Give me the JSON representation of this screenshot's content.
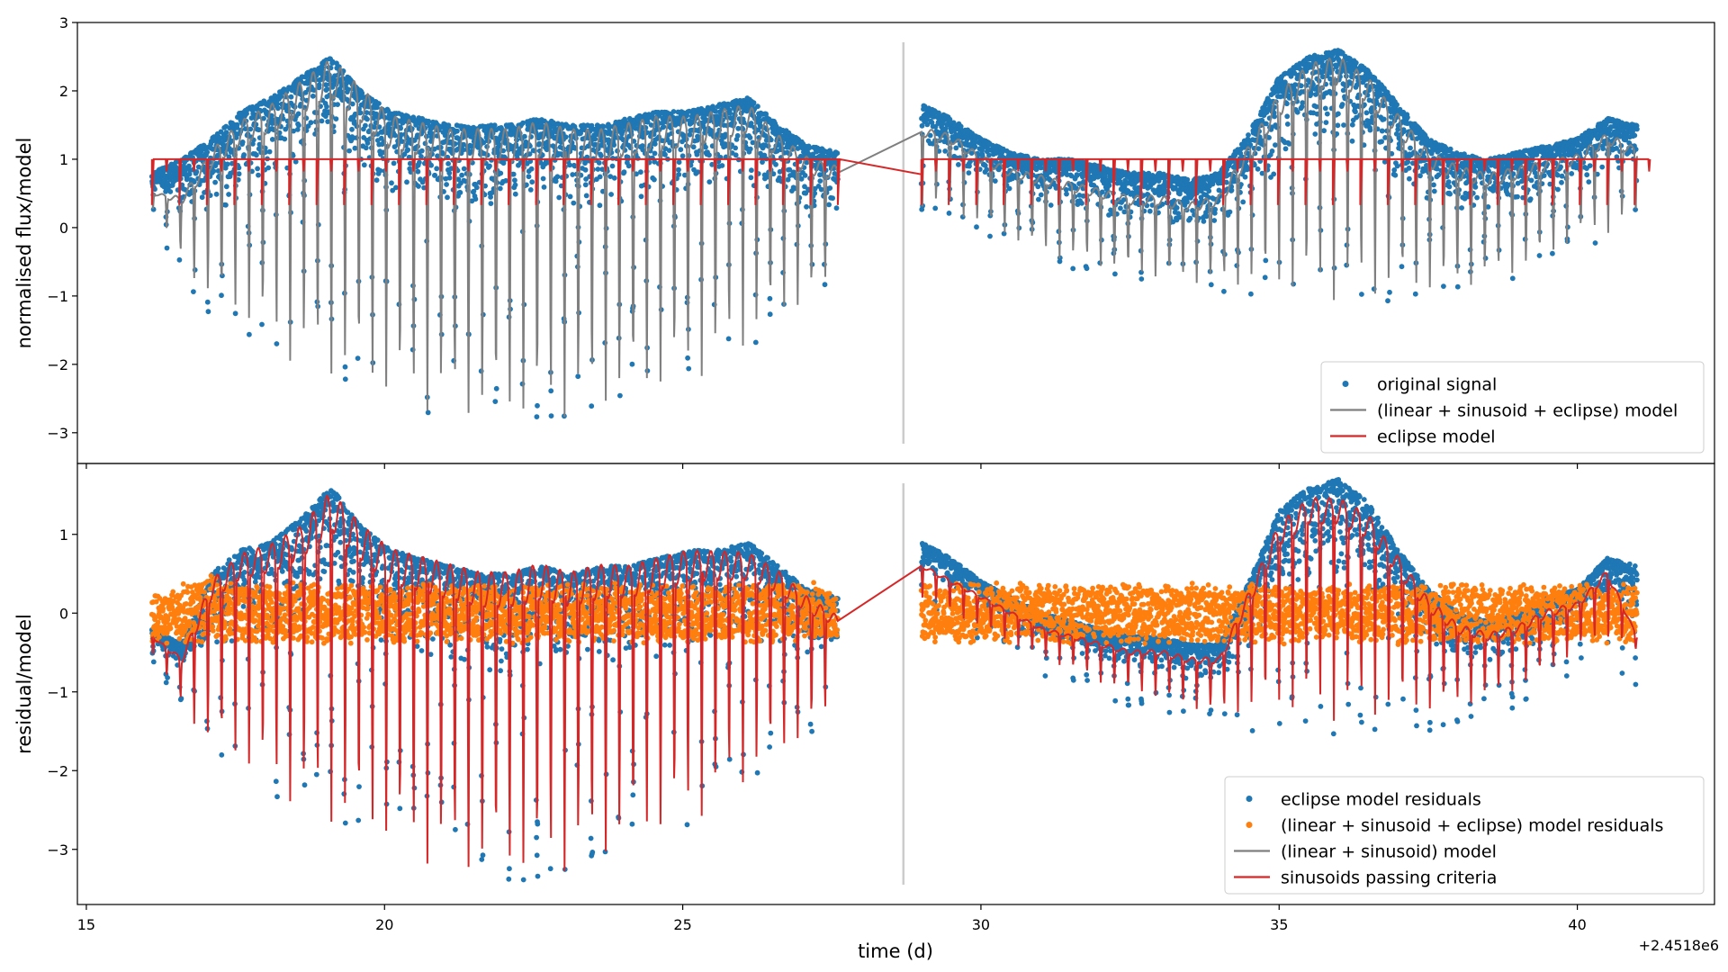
{
  "figure": {
    "xlabel": "time (d)",
    "x_offset_label": "+2.4518e6"
  },
  "chart_data": [
    {
      "type": "scatter",
      "ylabel": "normalised flux/model",
      "xlim": [
        14.85,
        42.3
      ],
      "ylim": [
        -3.45,
        3.0
      ],
      "x_ticks": [
        15,
        20,
        25,
        30,
        35,
        40
      ],
      "y_ticks": [
        -3,
        -2,
        -1,
        0,
        1,
        2,
        3
      ],
      "gap_marker_x": 28.7,
      "legend_position": "lower-right",
      "series": [
        {
          "name": "original signal",
          "kind": "points",
          "color": "#1f77b4",
          "x": [
            16.1,
            16.6,
            17.1,
            17.6,
            18.1,
            18.6,
            19.1,
            19.6,
            20.1,
            20.6,
            21.1,
            21.6,
            22.1,
            22.6,
            23.1,
            23.6,
            24.1,
            24.6,
            25.1,
            25.6,
            26.1,
            26.6,
            27.1,
            27.6,
            29.0,
            29.5,
            30.0,
            30.5,
            31.0,
            31.5,
            32.0,
            32.5,
            33.0,
            33.5,
            34.0,
            34.5,
            35.0,
            35.5,
            36.0,
            36.5,
            37.0,
            37.5,
            38.0,
            38.5,
            39.0,
            39.5,
            40.0,
            40.5,
            41.0
          ],
          "upper": [
            0.8,
            1.0,
            1.3,
            1.7,
            1.9,
            2.2,
            2.5,
            2.0,
            1.7,
            1.6,
            1.5,
            1.5,
            1.5,
            1.6,
            1.5,
            1.5,
            1.6,
            1.7,
            1.7,
            1.8,
            1.9,
            1.5,
            1.2,
            1.1,
            1.8,
            1.6,
            1.3,
            1.1,
            1.0,
            1.0,
            0.9,
            0.8,
            0.8,
            0.7,
            0.8,
            1.4,
            2.2,
            2.5,
            2.6,
            2.3,
            1.8,
            1.3,
            1.1,
            1.0,
            1.1,
            1.2,
            1.3,
            1.6,
            1.5
          ],
          "lower": [
            0.2,
            -0.8,
            -1.3,
            -1.5,
            -1.9,
            -2.2,
            -2.4,
            -2.5,
            -2.7,
            -2.8,
            -2.9,
            -3.0,
            -3.0,
            -3.0,
            -2.9,
            -2.8,
            -2.7,
            -2.6,
            -2.4,
            -2.2,
            -1.9,
            -1.5,
            -1.3,
            -0.9,
            0.2,
            0.1,
            -0.1,
            -0.3,
            -0.5,
            -0.6,
            -0.7,
            -0.8,
            -0.9,
            -0.9,
            -1.0,
            -1.0,
            -1.1,
            -1.2,
            -1.2,
            -1.2,
            -1.1,
            -1.1,
            -1.0,
            -0.9,
            -0.8,
            -0.6,
            -0.3,
            -0.2,
            0.0
          ]
        },
        {
          "name": "(linear + sinusoid + eclipse) model",
          "kind": "line",
          "color": "#7f7f7f",
          "x": [
            16.1,
            16.6,
            17.1,
            17.6,
            18.1,
            18.6,
            19.1,
            19.6,
            20.1,
            20.6,
            21.1,
            21.6,
            22.1,
            22.6,
            23.1,
            23.6,
            24.1,
            24.6,
            25.1,
            25.6,
            26.1,
            26.6,
            27.1,
            27.6,
            29.0,
            29.5,
            30.0,
            30.5,
            31.0,
            31.5,
            32.0,
            32.5,
            33.0,
            33.5,
            34.0,
            34.5,
            35.0,
            35.5,
            36.0,
            36.5,
            37.0,
            37.5,
            38.0,
            38.5,
            39.0,
            39.5,
            40.0,
            40.5,
            41.0
          ],
          "upper": [
            0.5,
            0.4,
            1.0,
            1.4,
            1.6,
            1.9,
            2.2,
            1.8,
            1.4,
            1.3,
            1.2,
            1.2,
            1.2,
            1.3,
            1.2,
            1.2,
            1.3,
            1.4,
            1.4,
            1.5,
            1.6,
            1.2,
            0.9,
            0.8,
            1.4,
            1.3,
            1.0,
            0.8,
            0.7,
            0.6,
            0.5,
            0.4,
            0.4,
            0.3,
            0.4,
            1.1,
            1.8,
            2.2,
            2.3,
            2.0,
            1.5,
            1.0,
            0.8,
            0.7,
            0.8,
            0.9,
            1.0,
            1.3,
            1.1
          ],
          "lower": [
            0.3,
            -0.5,
            -1.2,
            -1.4,
            -1.8,
            -2.1,
            -2.3,
            -2.4,
            -2.6,
            -2.7,
            -2.8,
            -2.9,
            -2.9,
            -2.9,
            -2.8,
            -2.7,
            -2.6,
            -2.5,
            -2.3,
            -2.1,
            -1.8,
            -1.4,
            -1.2,
            -0.8,
            0.3,
            0.2,
            0.0,
            -0.2,
            -0.4,
            -0.5,
            -0.6,
            -0.7,
            -0.8,
            -0.8,
            -0.9,
            -0.9,
            -1.0,
            -1.1,
            -1.1,
            -1.1,
            -1.0,
            -1.0,
            -0.9,
            -0.8,
            -0.7,
            -0.5,
            -0.2,
            -0.1,
            0.1
          ]
        },
        {
          "name": "eclipse model",
          "kind": "eclipse",
          "color": "#d62728",
          "baseline": 1.0,
          "dip_depth": 0.33,
          "period": 0.23,
          "x_start": [
            16.1,
            29.0
          ],
          "x_end": [
            27.7,
            41.1
          ]
        }
      ]
    },
    {
      "type": "scatter",
      "ylabel": "residual/model",
      "xlim": [
        14.85,
        42.3
      ],
      "ylim": [
        -3.7,
        1.9
      ],
      "x_ticks": [
        15,
        20,
        25,
        30,
        35,
        40
      ],
      "y_ticks": [
        -3,
        -2,
        -1,
        0,
        1
      ],
      "gap_marker_x": 28.7,
      "legend_position": "lower-right",
      "series": [
        {
          "name": "eclipse model residuals",
          "kind": "points",
          "color": "#1f77b4",
          "x": [
            16.1,
            16.6,
            17.1,
            17.6,
            18.1,
            18.6,
            19.1,
            19.6,
            20.1,
            20.6,
            21.1,
            21.6,
            22.1,
            22.6,
            23.1,
            23.6,
            24.1,
            24.6,
            25.1,
            25.6,
            26.1,
            26.6,
            27.1,
            27.6,
            29.0,
            29.5,
            30.0,
            30.5,
            31.0,
            31.5,
            32.0,
            32.5,
            33.0,
            33.5,
            34.0,
            34.5,
            35.0,
            35.5,
            36.0,
            36.5,
            37.0,
            37.5,
            38.0,
            38.5,
            39.0,
            39.5,
            40.0,
            40.5,
            41.0
          ],
          "upper": [
            -0.2,
            -0.4,
            0.5,
            0.8,
            0.9,
            1.2,
            1.6,
            1.1,
            0.8,
            0.7,
            0.6,
            0.5,
            0.5,
            0.6,
            0.5,
            0.6,
            0.6,
            0.7,
            0.8,
            0.8,
            0.9,
            0.6,
            0.3,
            0.2,
            0.9,
            0.7,
            0.4,
            0.2,
            0.0,
            -0.1,
            -0.2,
            -0.3,
            -0.3,
            -0.4,
            -0.4,
            0.4,
            1.3,
            1.6,
            1.7,
            1.4,
            0.8,
            0.3,
            0.0,
            -0.1,
            0.0,
            0.2,
            0.3,
            0.7,
            0.6
          ],
          "lower": [
            -0.6,
            -1.2,
            -1.8,
            -2.0,
            -2.3,
            -2.5,
            -2.8,
            -2.9,
            -3.0,
            -3.2,
            -3.3,
            -3.4,
            -3.4,
            -3.4,
            -3.3,
            -3.2,
            -3.0,
            -2.9,
            -2.7,
            -2.5,
            -2.2,
            -1.9,
            -1.6,
            -1.2,
            0.0,
            -0.2,
            -0.4,
            -0.6,
            -0.8,
            -0.9,
            -1.1,
            -1.2,
            -1.3,
            -1.4,
            -1.5,
            -1.5,
            -1.5,
            -1.6,
            -1.6,
            -1.6,
            -1.5,
            -1.5,
            -1.4,
            -1.3,
            -1.2,
            -1.0,
            -0.7,
            -0.5,
            -1.1
          ]
        },
        {
          "name": "(linear + sinusoid + eclipse) model residuals",
          "kind": "points",
          "color": "#ff7f0e",
          "x": [
            16.1,
            16.6,
            17.1,
            17.6,
            18.1,
            18.6,
            19.1,
            19.6,
            20.1,
            20.6,
            21.1,
            21.6,
            22.1,
            22.6,
            23.1,
            23.6,
            24.1,
            24.6,
            25.1,
            25.6,
            26.1,
            26.6,
            27.1,
            27.6,
            29.0,
            29.5,
            30.0,
            30.5,
            31.0,
            31.5,
            32.0,
            32.5,
            33.0,
            33.5,
            34.0,
            34.5,
            35.0,
            35.5,
            36.0,
            36.5,
            37.0,
            37.5,
            38.0,
            38.5,
            39.0,
            39.5,
            40.0,
            40.5,
            41.0
          ],
          "upper": [
            0.3,
            0.4,
            0.5,
            0.4,
            0.4,
            0.4,
            0.4,
            0.4,
            0.4,
            0.4,
            0.4,
            0.4,
            0.4,
            0.4,
            0.4,
            0.4,
            0.4,
            0.4,
            0.4,
            0.4,
            0.4,
            0.4,
            0.4,
            0.4,
            0.4,
            0.4,
            0.4,
            0.4,
            0.4,
            0.4,
            0.4,
            0.4,
            0.4,
            0.4,
            0.4,
            0.4,
            0.4,
            0.4,
            0.4,
            0.4,
            0.4,
            0.4,
            0.4,
            0.4,
            0.4,
            0.4,
            0.4,
            0.4,
            0.4
          ],
          "lower": [
            -0.4,
            -0.4,
            -0.4,
            -0.4,
            -0.4,
            -0.4,
            -0.4,
            -0.4,
            -0.4,
            -0.4,
            -0.4,
            -0.4,
            -0.4,
            -0.4,
            -0.4,
            -0.4,
            -0.4,
            -0.4,
            -0.4,
            -0.4,
            -0.4,
            -0.4,
            -0.4,
            -0.4,
            -0.4,
            -0.4,
            -0.4,
            -0.4,
            -0.4,
            -0.4,
            -0.4,
            -0.4,
            -0.4,
            -0.4,
            -0.4,
            -0.4,
            -0.4,
            -0.4,
            -0.4,
            -0.4,
            -0.4,
            -0.4,
            -0.4,
            -0.4,
            -0.4,
            -0.4,
            -0.4,
            -0.4,
            -0.4
          ]
        },
        {
          "name": "(linear + sinusoid) model",
          "kind": "legend-only",
          "color": "#7f7f7f"
        },
        {
          "name": "sinusoids passing criteria",
          "kind": "line",
          "color": "#d62728",
          "x": [
            16.1,
            16.6,
            17.1,
            17.6,
            18.1,
            18.6,
            19.1,
            19.6,
            20.1,
            20.6,
            21.1,
            21.6,
            22.1,
            22.6,
            23.1,
            23.6,
            24.1,
            24.6,
            25.1,
            25.6,
            26.1,
            26.6,
            27.1,
            27.6,
            29.0,
            29.5,
            30.0,
            30.5,
            31.0,
            31.5,
            32.0,
            32.5,
            33.0,
            33.5,
            34.0,
            34.5,
            35.0,
            35.5,
            36.0,
            36.5,
            37.0,
            37.5,
            38.0,
            38.5,
            39.0,
            39.5,
            40.0,
            40.5,
            41.0
          ],
          "upper": [
            -0.3,
            -0.6,
            0.3,
            0.6,
            0.7,
            0.9,
            1.3,
            0.9,
            0.6,
            0.5,
            0.4,
            0.3,
            0.3,
            0.4,
            0.3,
            0.4,
            0.4,
            0.5,
            0.6,
            0.6,
            0.6,
            0.4,
            0.1,
            -0.1,
            0.6,
            0.4,
            0.2,
            0.0,
            -0.2,
            -0.3,
            -0.4,
            -0.5,
            -0.5,
            -0.6,
            -0.6,
            0.2,
            1.0,
            1.3,
            1.3,
            1.1,
            0.6,
            0.1,
            -0.2,
            -0.3,
            -0.2,
            0.0,
            0.1,
            0.5,
            -0.3
          ],
          "lower": [
            -0.5,
            -1.2,
            -1.8,
            -2.0,
            -2.3,
            -2.5,
            -2.8,
            -2.9,
            -3.0,
            -3.2,
            -3.3,
            -3.4,
            -3.4,
            -3.4,
            -3.3,
            -3.2,
            -3.0,
            -2.9,
            -2.7,
            -2.5,
            -2.2,
            -1.9,
            -1.6,
            -1.2,
            0.2,
            0.0,
            -0.2,
            -0.4,
            -0.6,
            -0.7,
            -0.9,
            -1.0,
            -1.1,
            -1.2,
            -1.3,
            -1.3,
            -1.3,
            -1.4,
            -1.4,
            -1.4,
            -1.3,
            -1.3,
            -1.2,
            -1.1,
            -1.0,
            -0.8,
            -0.5,
            -0.3,
            -0.5
          ]
        }
      ]
    }
  ]
}
